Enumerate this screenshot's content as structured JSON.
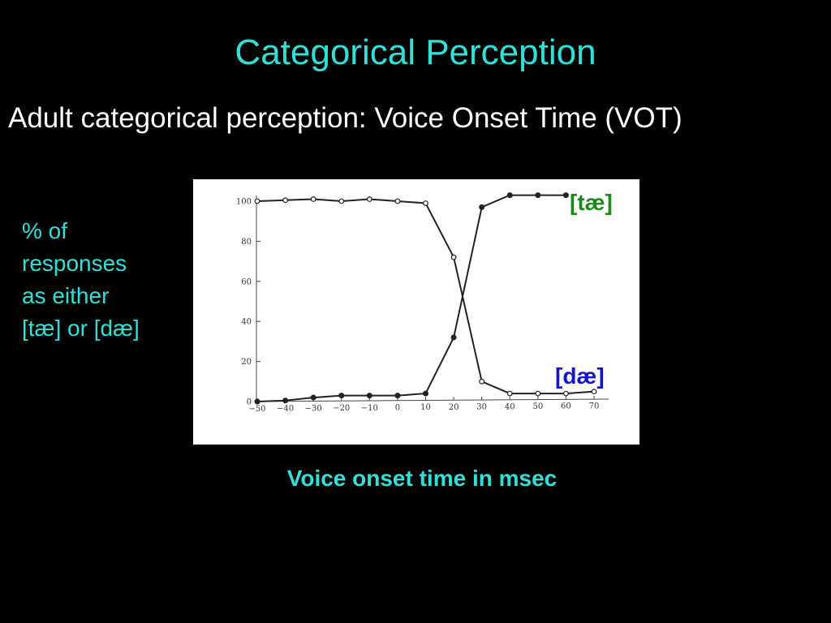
{
  "title": "Categorical Perception",
  "subtitle": "Adult categorical perception: Voice Onset Time (VOT)",
  "ylabel_lines": [
    "% of",
    "responses",
    "as either",
    "[tæ] or [dæ]"
  ],
  "xlabel": "Voice onset time in msec",
  "colors": {
    "background": "#000000",
    "title": "#33e0d8",
    "subtitle": "#ffffff",
    "tae_label": "#1a8a1a",
    "dae_label": "#1414c8",
    "plot_line": "#222222"
  },
  "chart_data": {
    "type": "line",
    "x": [
      -50,
      -40,
      -30,
      -20,
      -10,
      0,
      10,
      20,
      30,
      40,
      50,
      60,
      70
    ],
    "x_tick_labels": [
      "−50",
      "−40",
      "−30",
      "−20",
      "−10",
      "0",
      "10",
      "20",
      "30",
      "40",
      "50",
      "60",
      "70"
    ],
    "y_ticks": [
      0,
      20,
      40,
      60,
      80,
      100
    ],
    "y_tick_labels": [
      "0",
      "20",
      "40",
      "60",
      "80",
      "100"
    ],
    "ylim": [
      0,
      100
    ],
    "xlim": [
      -50,
      70
    ],
    "grid": false,
    "series": [
      {
        "name": "[dæ]",
        "marker": "open",
        "values": [
          100,
          100.5,
          101,
          100,
          101,
          100,
          99,
          72,
          10,
          4,
          4,
          4,
          5
        ]
      },
      {
        "name": "[tæ]",
        "marker": "filled",
        "values": [
          0,
          0.5,
          2,
          3,
          3,
          3,
          4,
          32,
          97,
          103,
          103,
          103,
          null
        ]
      }
    ]
  }
}
